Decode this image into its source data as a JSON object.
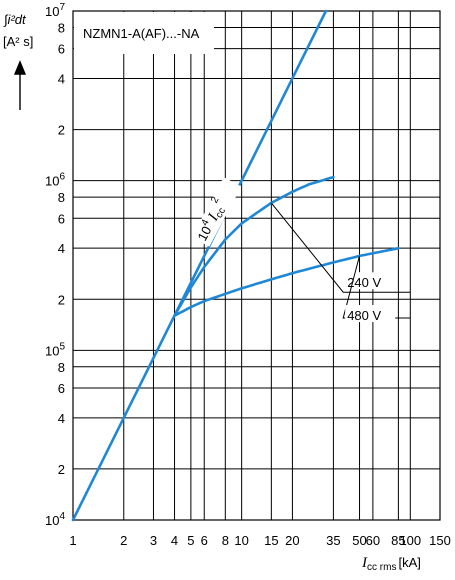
{
  "chart_data": {
    "type": "line",
    "title": "NZMN1-A(AF)...-NA",
    "ylabel_integral": "∫i²dt",
    "ylabel_unit": "[A² s]",
    "xlabel_symbol": "I",
    "xlabel_subscript": "cc rms",
    "xlabel_unit": "[kA]",
    "xscale": "log",
    "yscale": "log",
    "xlim": [
      1,
      150
    ],
    "ylim": [
      10000,
      10000000
    ],
    "x_ticks": [
      1,
      2,
      3,
      4,
      5,
      6,
      8,
      10,
      15,
      20,
      35,
      50,
      60,
      85,
      100,
      150
    ],
    "x_tick_labels": [
      "1",
      "2",
      "3",
      "4",
      "5",
      "6",
      "8",
      "10",
      "15",
      "20",
      "35",
      "50",
      "60",
      "85",
      "100",
      "150"
    ],
    "y_ticks": [
      10000,
      20000,
      40000,
      60000,
      80000,
      100000,
      200000,
      400000,
      600000,
      800000,
      1000000,
      2000000,
      4000000,
      6000000,
      8000000,
      10000000
    ],
    "y_tick_labels": [
      {
        "base": "10",
        "exp": "4"
      },
      {
        "base": "2"
      },
      {
        "base": "4"
      },
      {
        "base": "6"
      },
      {
        "base": "8"
      },
      {
        "base": "10",
        "exp": "5"
      },
      {
        "base": "2"
      },
      {
        "base": "4"
      },
      {
        "base": "6"
      },
      {
        "base": "8"
      },
      {
        "base": "10",
        "exp": "6"
      },
      {
        "base": "2"
      },
      {
        "base": "4"
      },
      {
        "base": "6"
      },
      {
        "base": "8"
      },
      {
        "base": "10",
        "exp": "7"
      }
    ],
    "grid": true,
    "series": [
      {
        "name": "10⁴ Icc²",
        "name_parts": {
          "coef": "10",
          "coef_exp": "4",
          "symbol": "I",
          "sub": "cc",
          "exp": "2"
        },
        "x": [
          1,
          31.6
        ],
        "y": [
          10000,
          10000000
        ]
      },
      {
        "name": "240 V",
        "x": [
          4,
          5,
          6,
          8,
          10,
          15,
          20,
          25,
          35
        ],
        "y": [
          160000,
          235000,
          310000,
          450000,
          560000,
          740000,
          860000,
          950000,
          1050000
        ]
      },
      {
        "name": "480 V",
        "x": [
          4,
          5,
          6,
          8,
          10,
          15,
          20,
          35,
          50,
          85
        ],
        "y": [
          160000,
          180000,
          195000,
          215000,
          232000,
          262000,
          285000,
          330000,
          360000,
          400000
        ]
      }
    ]
  }
}
